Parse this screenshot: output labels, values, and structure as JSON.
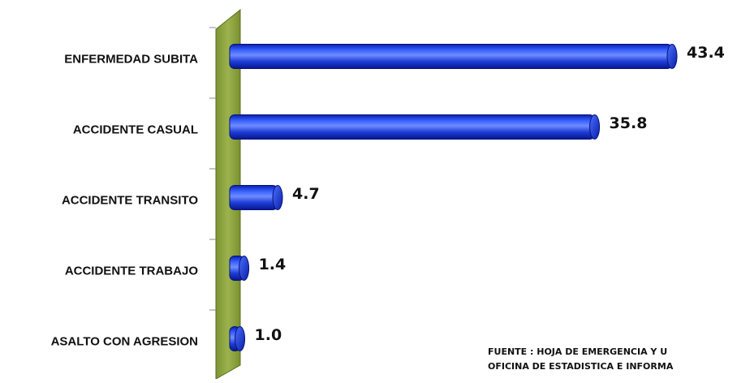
{
  "chart_data": {
    "type": "bar",
    "orientation": "horizontal",
    "categories": [
      "ENFERMEDAD SUBITA",
      "ACCIDENTE CASUAL",
      "ACCIDENTE TRANSITO",
      "ACCIDENTE TRABAJO",
      "ASALTO CON AGRESION"
    ],
    "values": [
      43.4,
      35.8,
      4.7,
      1.4,
      1.0
    ],
    "value_labels": [
      "43.4",
      "35.8",
      "4.7",
      "1.4",
      "1.0"
    ],
    "xlim": [
      0,
      45
    ],
    "bar_color": "#1f3fd8",
    "axis_wall_color": "#8aa040"
  },
  "source": {
    "line1": "FUENTE : HOJA DE EMERGENCIA Y U",
    "line2": "OFICINA DE ESTADISTICA E INFORMA"
  }
}
